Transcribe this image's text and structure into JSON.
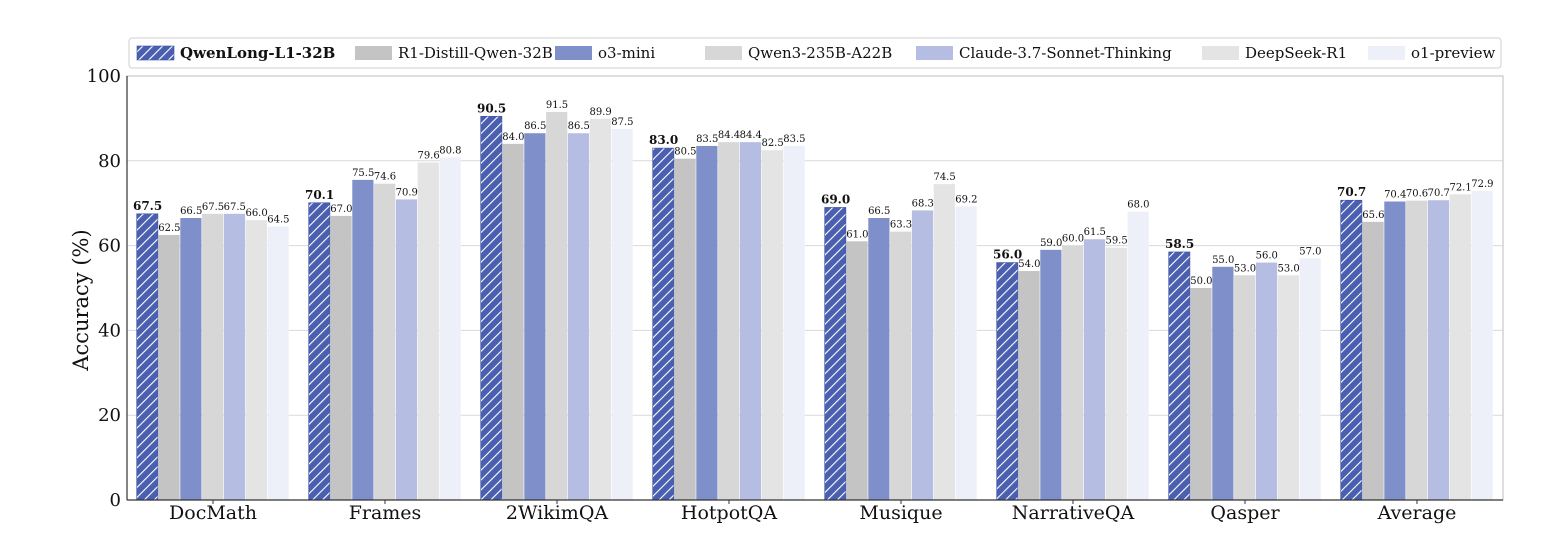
{
  "chart_data": {
    "type": "bar",
    "ylabel": "Accuracy (%)",
    "xlabel": "",
    "ylim": [
      0,
      100
    ],
    "yticks": [
      "0",
      "20",
      "40",
      "60",
      "80",
      "100"
    ],
    "grid": "horizontal",
    "legend_position": "top",
    "categories": [
      "DocMath",
      "Frames",
      "2WikimQA",
      "HotpotQA",
      "Musique",
      "NarrativeQA",
      "Qasper",
      "Average"
    ],
    "series": [
      {
        "name": "QwenLong-L1-32B",
        "color": "#4a5fb0",
        "pattern": "hatch",
        "bold": true,
        "values": [
          67.5,
          70.1,
          90.5,
          83.0,
          69.0,
          56.0,
          58.5,
          70.7
        ],
        "labels": [
          "67.5",
          "70.1",
          "90.5",
          "83.0",
          "69.0",
          "56.0",
          "58.5",
          "70.7"
        ]
      },
      {
        "name": "R1-Distill-Qwen-32B",
        "color": "#c4c4c4",
        "values": [
          62.5,
          67.0,
          84.0,
          80.5,
          61.0,
          54.0,
          50.0,
          65.6
        ],
        "labels": [
          "62.5",
          "67.0",
          "84.0",
          "80.5",
          "61.0",
          "54.0",
          "50.0",
          "65.6"
        ]
      },
      {
        "name": "o3-mini",
        "color": "#7e8fca",
        "values": [
          66.5,
          75.5,
          86.5,
          83.5,
          66.5,
          59.0,
          55.0,
          70.4
        ],
        "labels": [
          "66.5",
          "75.5",
          "86.5",
          "83.5",
          "66.5",
          "59.0",
          "55.0",
          "70.4"
        ]
      },
      {
        "name": "Qwen3-235B-A22B",
        "color": "#d7d7d7",
        "values": [
          67.5,
          74.6,
          91.5,
          84.4,
          63.3,
          60.0,
          53.0,
          70.6
        ],
        "labels": [
          "67.5",
          "74.6",
          "91.5",
          "84.4",
          "63.3",
          "60.0",
          "53.0",
          "70.6"
        ]
      },
      {
        "name": "Claude-3.7-Sonnet-Thinking",
        "color": "#b6bde3",
        "values": [
          67.5,
          70.9,
          86.5,
          84.4,
          68.3,
          61.5,
          56.0,
          70.7
        ],
        "labels": [
          "67.5",
          "70.9",
          "86.5",
          "84.4",
          "68.3",
          "61.5",
          "56.0",
          "70.7"
        ]
      },
      {
        "name": "DeepSeek-R1",
        "color": "#e4e4e4",
        "values": [
          66.0,
          79.6,
          89.9,
          82.5,
          74.5,
          59.5,
          53.0,
          72.1
        ],
        "labels": [
          "66.0",
          "79.6",
          "89.9",
          "82.5",
          "74.5",
          "59.5",
          "53.0",
          "72.1"
        ]
      },
      {
        "name": "o1-preview",
        "color": "#eef0f9",
        "values": [
          64.5,
          80.8,
          87.5,
          83.5,
          69.2,
          68.0,
          57.0,
          72.9
        ],
        "labels": [
          "64.5",
          "80.8",
          "87.5",
          "83.5",
          "69.2",
          "68.0",
          "57.0",
          "72.9"
        ]
      }
    ]
  }
}
